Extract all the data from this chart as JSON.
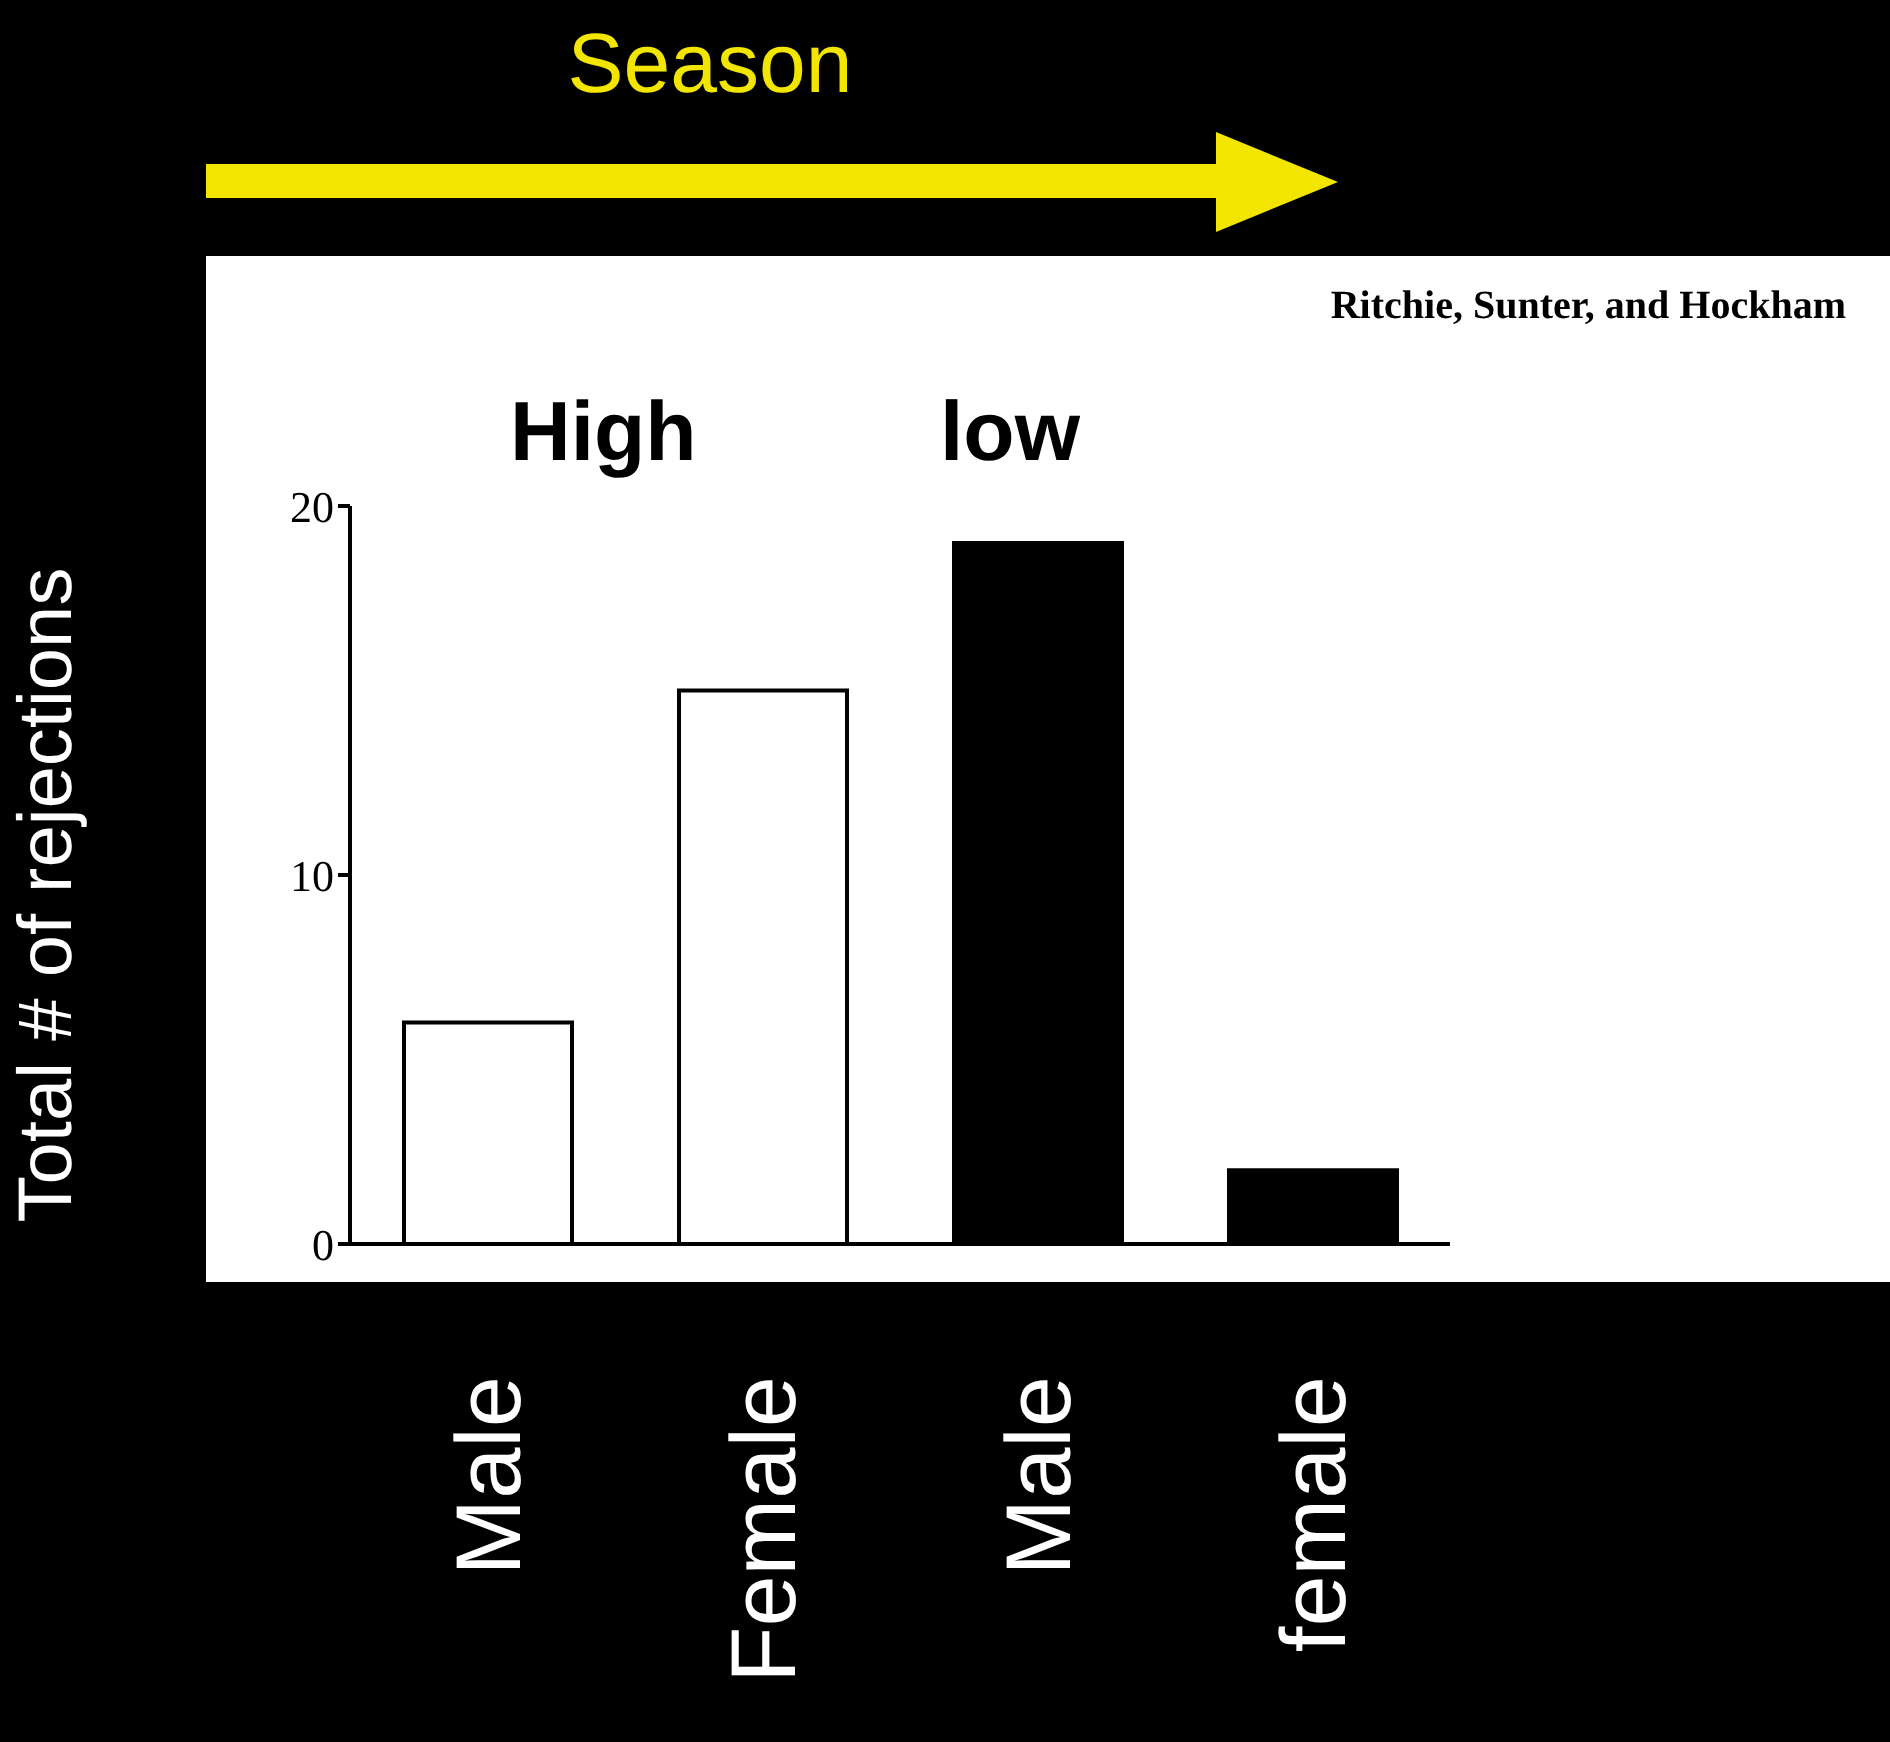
{
  "chart_data": {
    "type": "bar",
    "title": "Season",
    "ylabel": "Total # of rejections",
    "categories": [
      "Male",
      "Female",
      "Male",
      "female"
    ],
    "values": [
      6,
      15,
      19,
      2
    ],
    "colors": [
      "#ffffff",
      "#ffffff",
      "#000000",
      "#000000"
    ],
    "ylim": [
      0,
      20
    ],
    "yticks": [
      0,
      10,
      20
    ],
    "grid": false,
    "annotations": [
      "Ritchie, Sunter, and Hockham",
      "High",
      "low"
    ]
  }
}
